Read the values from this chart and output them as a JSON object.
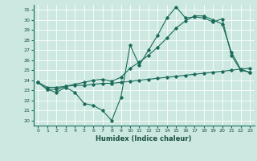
{
  "xlabel": "Humidex (Indice chaleur)",
  "bg_color": "#cce8e0",
  "grid_color": "#ffffff",
  "line_color": "#1a6b5a",
  "xlim": [
    -0.5,
    23.5
  ],
  "ylim": [
    19.5,
    31.5
  ],
  "xticks": [
    0,
    1,
    2,
    3,
    4,
    5,
    6,
    7,
    8,
    9,
    10,
    11,
    12,
    13,
    14,
    15,
    16,
    17,
    18,
    19,
    20,
    21,
    22,
    23
  ],
  "yticks": [
    20,
    21,
    22,
    23,
    24,
    25,
    26,
    27,
    28,
    29,
    30,
    31
  ],
  "line1": [
    23.8,
    23.1,
    22.8,
    23.3,
    22.8,
    21.7,
    21.5,
    21.0,
    20.0,
    22.3,
    27.5,
    25.5,
    27.0,
    28.5,
    30.2,
    31.3,
    30.2,
    30.3,
    30.2,
    29.8,
    30.1,
    26.5,
    25.0,
    24.8
  ],
  "line2": [
    23.8,
    23.3,
    23.3,
    23.4,
    23.5,
    23.5,
    23.6,
    23.7,
    23.7,
    23.8,
    23.9,
    24.0,
    24.1,
    24.2,
    24.3,
    24.4,
    24.5,
    24.6,
    24.7,
    24.8,
    24.9,
    25.0,
    25.1,
    25.2
  ],
  "line3": [
    23.8,
    23.1,
    23.1,
    23.4,
    23.6,
    23.8,
    24.0,
    24.1,
    23.9,
    24.3,
    25.2,
    25.8,
    26.5,
    27.3,
    28.2,
    29.2,
    29.9,
    30.4,
    30.4,
    30.0,
    29.6,
    26.8,
    25.1,
    24.8
  ]
}
